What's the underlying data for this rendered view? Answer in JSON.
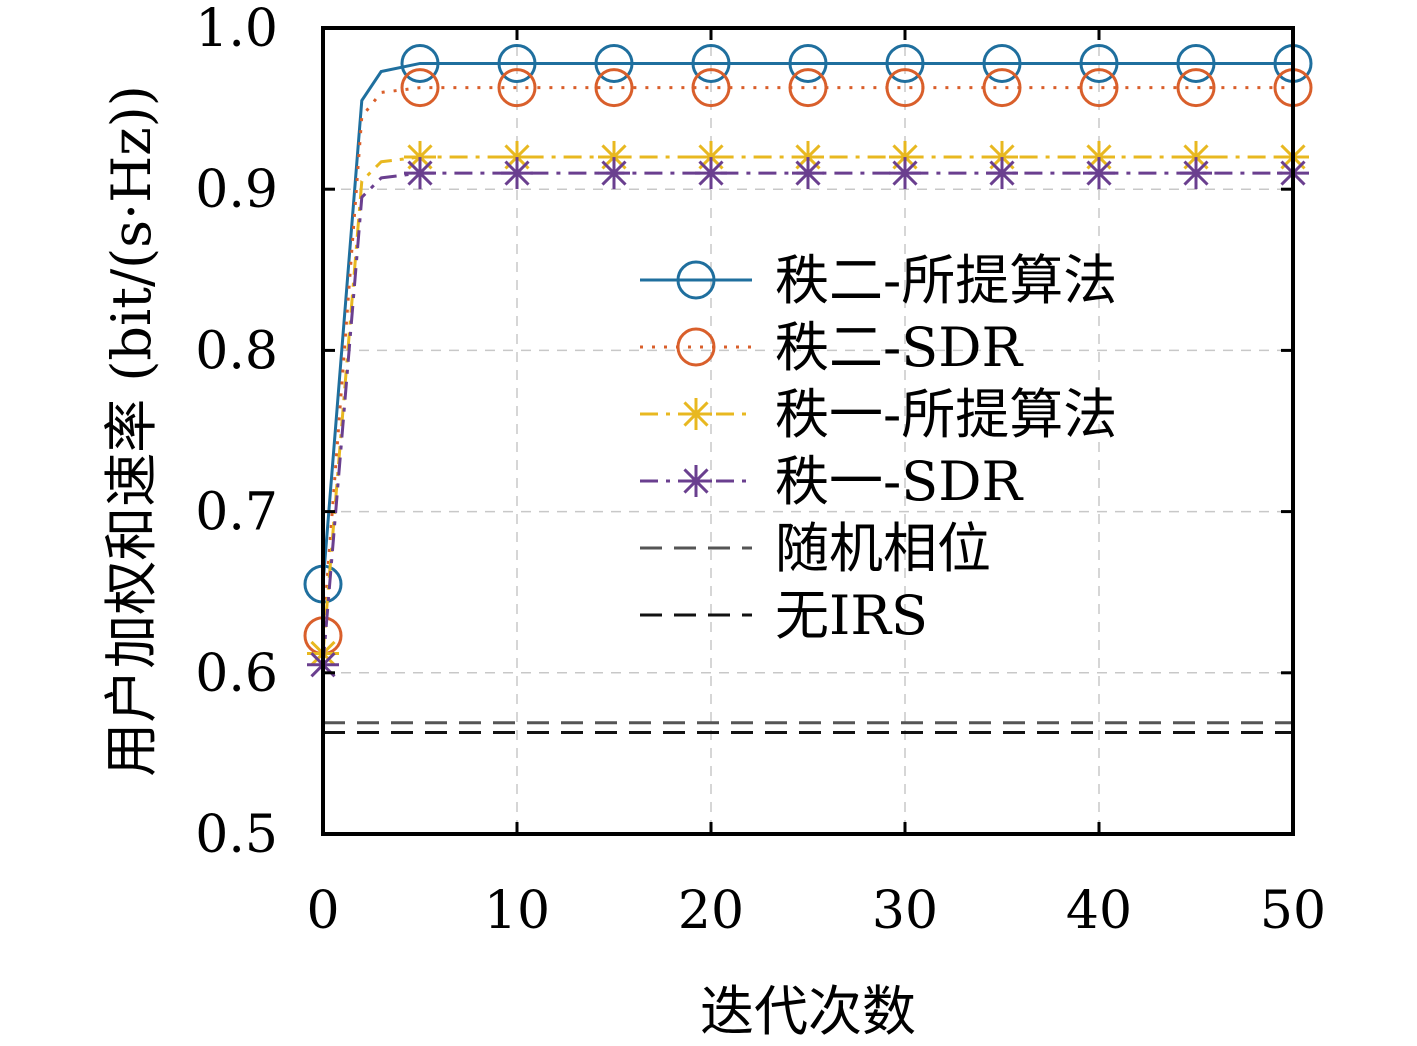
{
  "chart_data": {
    "type": "line",
    "title": "",
    "xlabel": "迭代次数",
    "ylabel": "用户加权和速率 (bit/(s·Hz))",
    "xlim": [
      0,
      50
    ],
    "ylim": [
      0.5,
      1.0
    ],
    "xticks": [
      0,
      10,
      20,
      30,
      40,
      50
    ],
    "yticks": [
      0.5,
      0.6,
      0.7,
      0.8,
      0.9,
      1.0
    ],
    "xtick_labels": [
      "0",
      "10",
      "20",
      "30",
      "40",
      "50"
    ],
    "ytick_labels": [
      "0.5",
      "0.6",
      "0.7",
      "0.8",
      "0.9",
      "1.0"
    ],
    "grid": true,
    "legend_position": "center-right",
    "series": [
      {
        "name": "秩二-所提算法",
        "color": "#1f6f9e",
        "dash": "solid",
        "marker": "circle",
        "x": [
          0,
          2,
          3,
          5,
          10,
          15,
          20,
          25,
          30,
          35,
          40,
          45,
          50
        ],
        "y": [
          0.655,
          0.955,
          0.973,
          0.978,
          0.978,
          0.978,
          0.978,
          0.978,
          0.978,
          0.978,
          0.978,
          0.978,
          0.978
        ],
        "marker_x": [
          0,
          5,
          10,
          15,
          20,
          25,
          30,
          35,
          40,
          45,
          50
        ]
      },
      {
        "name": "秩二-SDR",
        "color": "#d95f2b",
        "dash": "dotted",
        "marker": "circle",
        "x": [
          0,
          2,
          3,
          5,
          10,
          15,
          20,
          25,
          30,
          35,
          40,
          45,
          50
        ],
        "y": [
          0.623,
          0.945,
          0.96,
          0.963,
          0.963,
          0.963,
          0.963,
          0.963,
          0.963,
          0.963,
          0.963,
          0.963,
          0.963
        ],
        "marker_x": [
          0,
          5,
          10,
          15,
          20,
          25,
          30,
          35,
          40,
          45,
          50
        ]
      },
      {
        "name": "秩一-所提算法",
        "color": "#e8b820",
        "dash": "dashdot",
        "marker": "star",
        "x": [
          0,
          2,
          3,
          5,
          10,
          15,
          20,
          25,
          30,
          35,
          40,
          45,
          50
        ],
        "y": [
          0.612,
          0.905,
          0.917,
          0.92,
          0.92,
          0.92,
          0.92,
          0.92,
          0.92,
          0.92,
          0.92,
          0.92,
          0.92
        ],
        "marker_x": [
          0,
          5,
          10,
          15,
          20,
          25,
          30,
          35,
          40,
          45,
          50
        ]
      },
      {
        "name": "秩一-SDR",
        "color": "#6a3f8f",
        "dash": "dashdot",
        "marker": "star",
        "x": [
          0,
          2,
          3,
          5,
          10,
          15,
          20,
          25,
          30,
          35,
          40,
          45,
          50
        ],
        "y": [
          0.605,
          0.895,
          0.907,
          0.91,
          0.91,
          0.91,
          0.91,
          0.91,
          0.91,
          0.91,
          0.91,
          0.91,
          0.91
        ],
        "marker_x": [
          0,
          5,
          10,
          15,
          20,
          25,
          30,
          35,
          40,
          45,
          50
        ]
      },
      {
        "name": "随机相位",
        "color": "#555555",
        "dash": "dashed",
        "marker": "none",
        "x": [
          0,
          50
        ],
        "y": [
          0.569,
          0.569
        ],
        "marker_x": []
      },
      {
        "name": "无IRS",
        "color": "#111111",
        "dash": "dashed",
        "marker": "none",
        "x": [
          0,
          50
        ],
        "y": [
          0.563,
          0.563
        ],
        "marker_x": []
      }
    ]
  }
}
